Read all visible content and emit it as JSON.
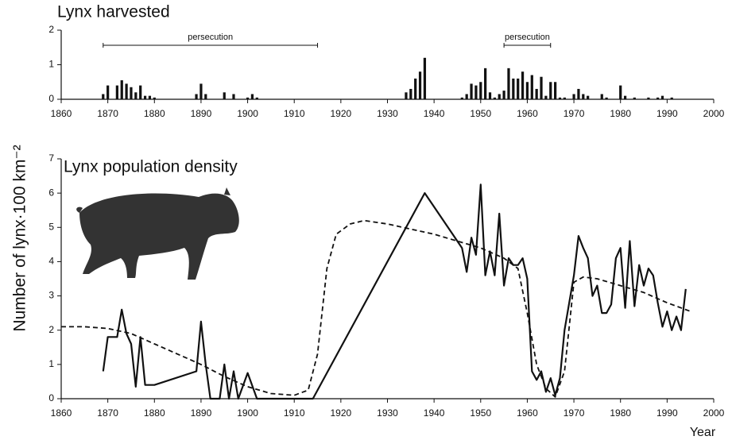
{
  "chart_data": [
    {
      "type": "bar",
      "title": "Lynx harvested",
      "color": "#111",
      "x": [
        1869,
        1870,
        1872,
        1873,
        1874,
        1875,
        1876,
        1877,
        1878,
        1879,
        1880,
        1889,
        1890,
        1891,
        1895,
        1897,
        1900,
        1901,
        1902,
        1934,
        1935,
        1936,
        1937,
        1938,
        1946,
        1947,
        1948,
        1949,
        1950,
        1951,
        1952,
        1953,
        1954,
        1955,
        1956,
        1957,
        1958,
        1959,
        1960,
        1961,
        1962,
        1963,
        1964,
        1965,
        1966,
        1967,
        1968,
        1970,
        1971,
        1972,
        1973,
        1976,
        1977,
        1980,
        1981,
        1983,
        1986,
        1988,
        1989,
        1991
      ],
      "values": [
        0.15,
        0.4,
        0.4,
        0.55,
        0.45,
        0.35,
        0.2,
        0.4,
        0.1,
        0.1,
        0.05,
        0.15,
        0.45,
        0.15,
        0.2,
        0.15,
        0.05,
        0.15,
        0.05,
        0.2,
        0.3,
        0.6,
        0.8,
        1.2,
        0.05,
        0.15,
        0.45,
        0.4,
        0.5,
        0.9,
        0.2,
        0.05,
        0.15,
        0.25,
        0.9,
        0.6,
        0.6,
        0.8,
        0.5,
        0.7,
        0.3,
        0.65,
        0.1,
        0.5,
        0.5,
        0.05,
        0.05,
        0.15,
        0.3,
        0.15,
        0.1,
        0.15,
        0.05,
        0.4,
        0.1,
        0.05,
        0.05,
        0.05,
        0.1,
        0.05
      ],
      "annotations": [
        {
          "text": "persecution",
          "x": [
            1869,
            1915
          ]
        },
        {
          "text": "persecution",
          "x": [
            1955,
            1965
          ]
        }
      ],
      "xlim": [
        1860,
        2000
      ],
      "xticks": [
        1860,
        1870,
        1880,
        1890,
        1900,
        1910,
        1920,
        1930,
        1940,
        1950,
        1960,
        1970,
        1980,
        1990,
        2000
      ],
      "ylim": [
        0,
        2
      ],
      "yticks": [
        0,
        1,
        2
      ]
    },
    {
      "type": "line",
      "title": "Lynx population density",
      "ylabel": "Number of lynx·100 km⁻²",
      "xlabel": "Year",
      "series": [
        {
          "color": "#111",
          "style": "solid",
          "x": [
            1869,
            1870,
            1872,
            1873,
            1874,
            1875,
            1876,
            1877,
            1878,
            1880,
            1889,
            1890,
            1891,
            1892,
            1894,
            1895,
            1896,
            1897,
            1898,
            1900,
            1902,
            1914,
            1938,
            1946,
            1947,
            1948,
            1949,
            1950,
            1951,
            1952,
            1953,
            1954,
            1955,
            1956,
            1957,
            1958,
            1959,
            1960,
            1961,
            1962,
            1963,
            1964,
            1965,
            1966,
            1967,
            1968,
            1969,
            1970,
            1971,
            1972,
            1973,
            1974,
            1975,
            1976,
            1977,
            1978,
            1979,
            1980,
            1981,
            1982,
            1983,
            1984,
            1985,
            1986,
            1987,
            1988,
            1989,
            1990,
            1991,
            1992,
            1993,
            1994
          ],
          "values": [
            0.8,
            1.8,
            1.8,
            2.6,
            1.9,
            1.6,
            0.35,
            1.8,
            0.4,
            0.4,
            0.8,
            2.25,
            1.0,
            0,
            0,
            1.0,
            0,
            0.8,
            0,
            0.75,
            0,
            0,
            6.0,
            4.4,
            3.7,
            4.7,
            4.2,
            6.25,
            3.6,
            4.3,
            3.6,
            5.4,
            3.3,
            4.1,
            3.9,
            3.9,
            4.1,
            3.5,
            0.8,
            0.55,
            0.8,
            0.2,
            0.6,
            0.1,
            0.6,
            2.0,
            2.8,
            3.6,
            4.75,
            4.4,
            4.1,
            3.0,
            3.3,
            2.5,
            2.5,
            2.75,
            4.1,
            4.4,
            2.65,
            4.6,
            2.7,
            3.9,
            3.3,
            3.8,
            3.6,
            2.8,
            2.1,
            2.55,
            2.0,
            2.4,
            2.0,
            3.2
          ]
        },
        {
          "color": "#111",
          "style": "dashed",
          "x": [
            1860,
            1865,
            1870,
            1875,
            1880,
            1885,
            1890,
            1895,
            1900,
            1905,
            1910,
            1913,
            1915,
            1917,
            1919,
            1922,
            1925,
            1930,
            1940,
            1950,
            1955,
            1958,
            1960,
            1962,
            1964,
            1966,
            1968,
            1970,
            1972,
            1975,
            1980,
            1985,
            1990,
            1995
          ],
          "values": [
            2.1,
            2.1,
            2.05,
            1.9,
            1.6,
            1.3,
            1.0,
            0.65,
            0.35,
            0.15,
            0.1,
            0.25,
            1.3,
            3.8,
            4.8,
            5.1,
            5.2,
            5.1,
            4.8,
            4.4,
            4.1,
            3.8,
            2.5,
            1.0,
            0.3,
            0.05,
            0.8,
            3.4,
            3.55,
            3.5,
            3.3,
            3.1,
            2.8,
            2.55
          ]
        }
      ],
      "xlim": [
        1860,
        2000
      ],
      "xticks": [
        1860,
        1870,
        1880,
        1890,
        1900,
        1910,
        1920,
        1930,
        1940,
        1950,
        1960,
        1970,
        1980,
        1990,
        2000
      ],
      "ylim": [
        0,
        7
      ],
      "yticks": [
        0,
        1,
        2,
        3,
        4,
        5,
        6,
        7
      ]
    }
  ]
}
